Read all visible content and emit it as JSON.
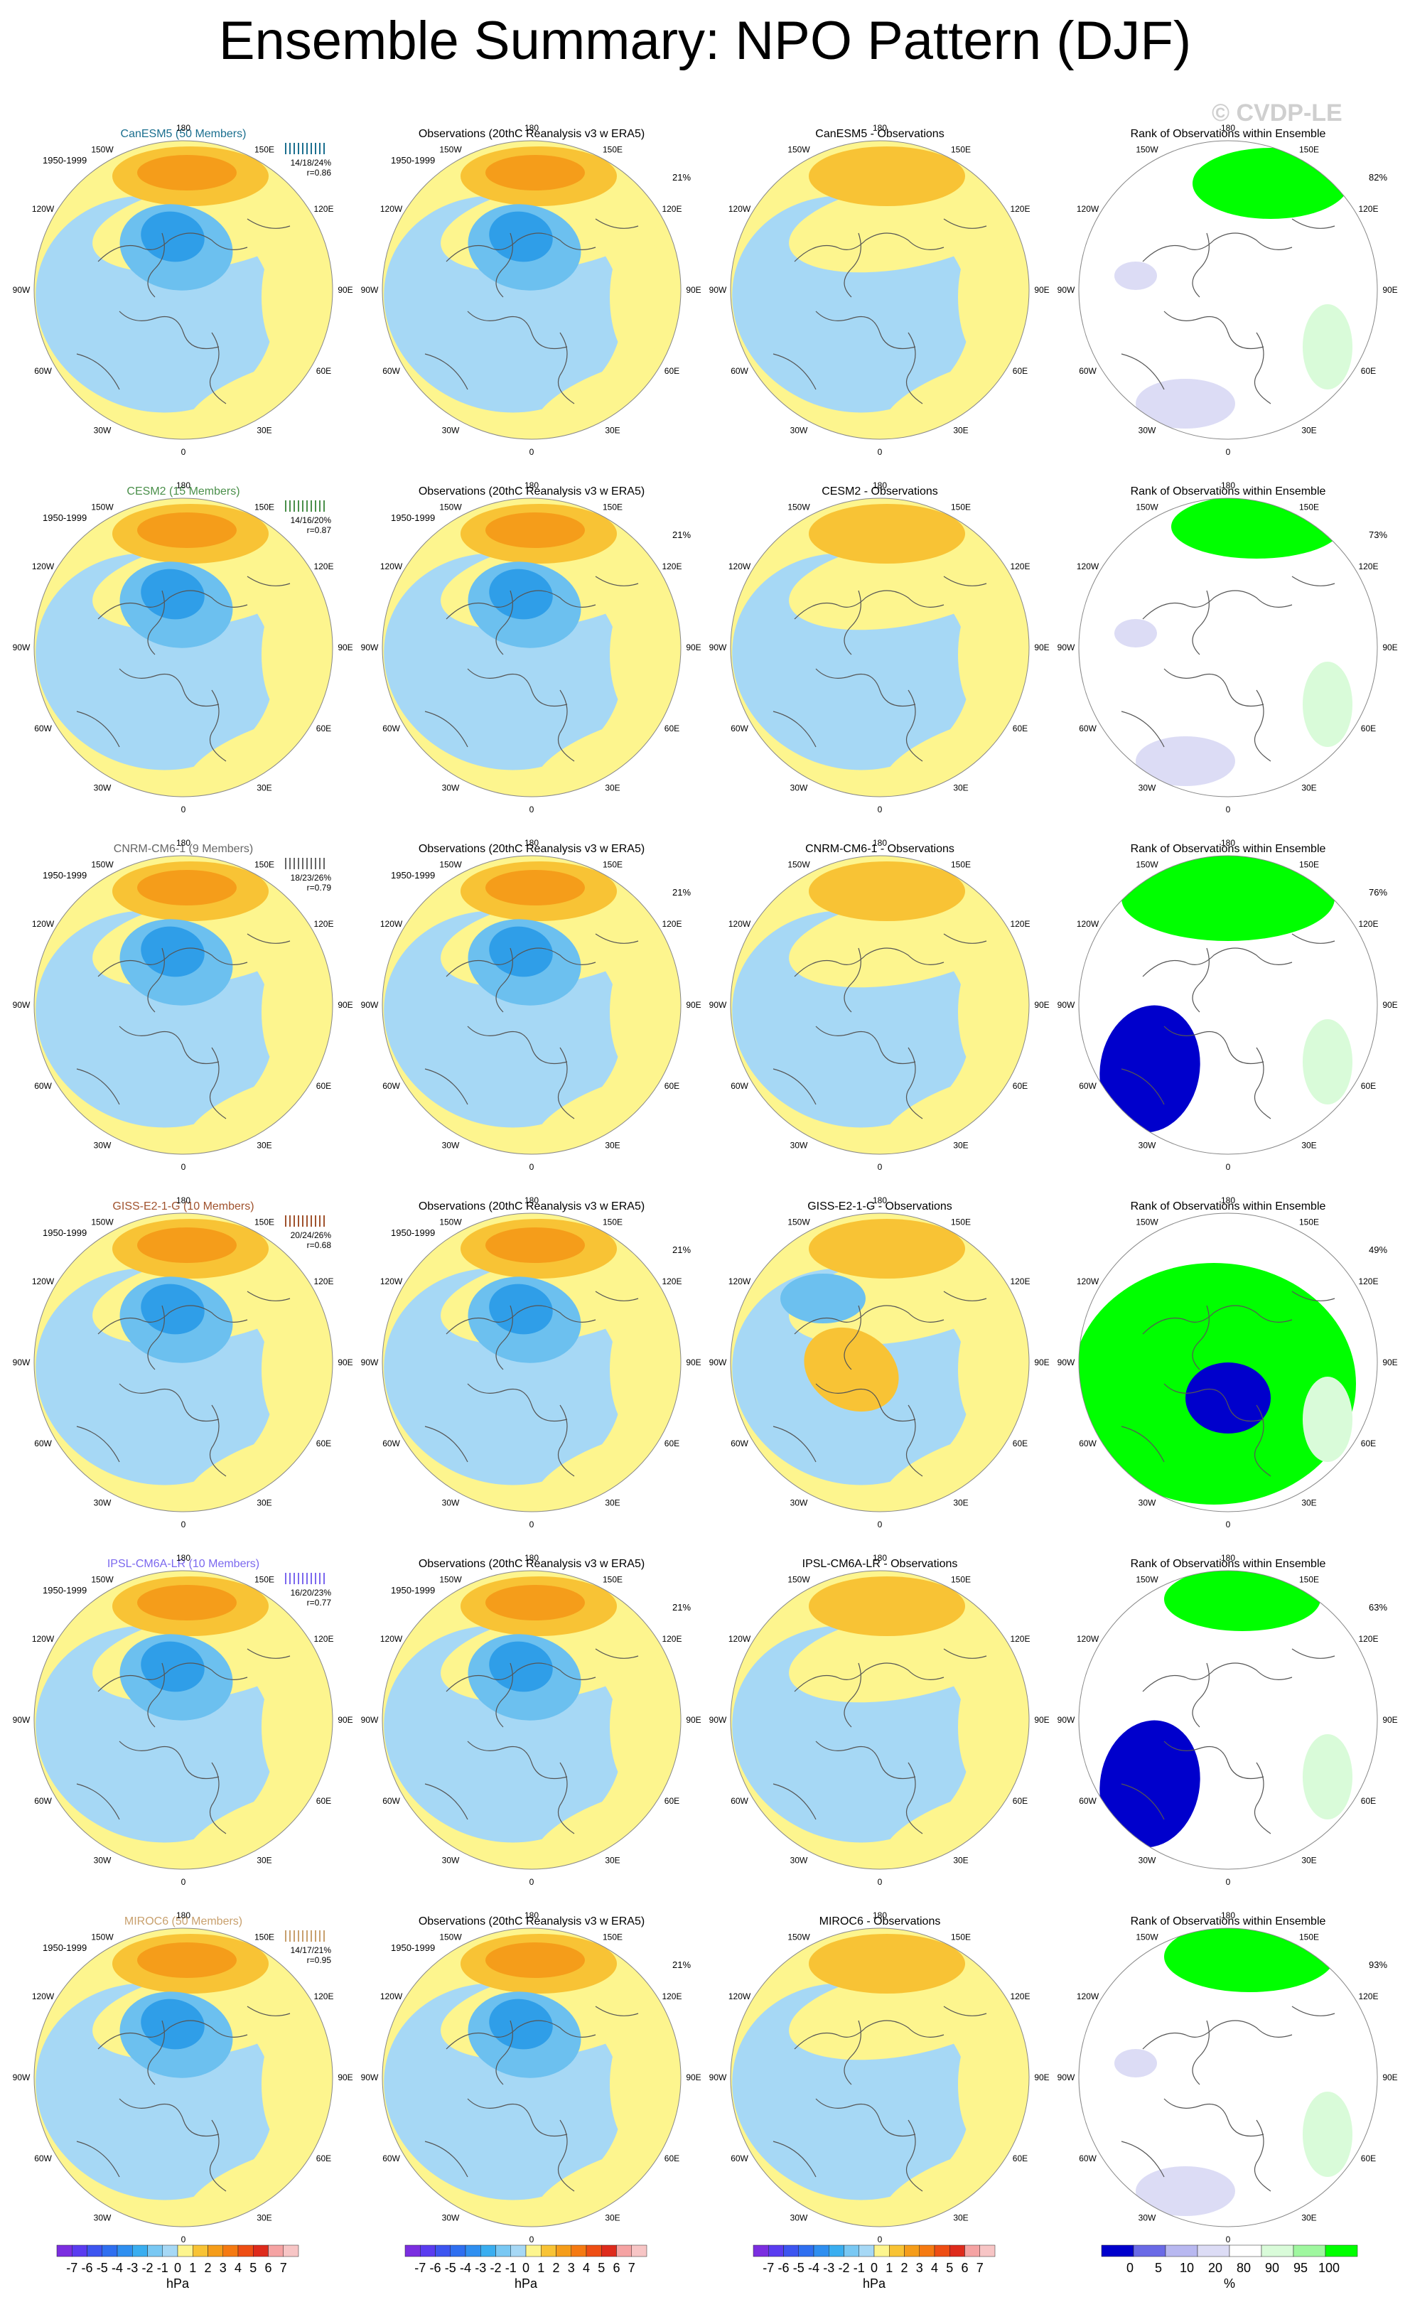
{
  "title": "Ensemble Summary: NPO Pattern (DJF)",
  "watermark": "© CVDP-LE",
  "period": "1950-1999",
  "obs_title": "Observations (20thC Reanalysis v3 w ERA5)",
  "obs_pct": "21%",
  "rank_title": "Rank of Observations within Ensemble",
  "lon_labels": [
    "180",
    "150E",
    "120E",
    "90E",
    "60E",
    "30E",
    "0",
    "30W",
    "60W",
    "90W",
    "120W",
    "150W"
  ],
  "colors": {
    "ens_colors": [
      "#1b6f8f",
      "#4a8f4a",
      "#666666",
      "#a0522d",
      "#7b68ee",
      "#c8a06e"
    ],
    "fill_yellow": "#fdf58e",
    "fill_orange": "#f8c335",
    "fill_dorange": "#f59d1a",
    "fill_lblue": "#a6d8f5",
    "fill_blue": "#6cc0ef",
    "fill_dblue": "#2f9ee8",
    "fill_vdblue": "#1f63d8",
    "rank_green": "#00ff00",
    "rank_blue": "#0000cc",
    "rank_lblue": "#dcdcf5"
  },
  "rows": [
    {
      "model": "CanESM5 (50 Members)",
      "diff_title": "CanESM5 - Observations",
      "stats": [
        "14/18/24%",
        "r=0.86"
      ],
      "rank_pct": "82%",
      "color": "#1b6f8f"
    },
    {
      "model": "CESM2 (15 Members)",
      "diff_title": "CESM2 - Observations",
      "stats": [
        "14/16/20%",
        "r=0.87"
      ],
      "rank_pct": "73%",
      "color": "#4a8f4a"
    },
    {
      "model": "CNRM-CM6-1 (9 Members)",
      "diff_title": "CNRM-CM6-1 - Observations",
      "stats": [
        "18/23/26%",
        "r=0.79"
      ],
      "rank_pct": "76%",
      "color": "#666666"
    },
    {
      "model": "GISS-E2-1-G (10 Members)",
      "diff_title": "GISS-E2-1-G - Observations",
      "stats": [
        "20/24/26%",
        "r=0.68"
      ],
      "rank_pct": "49%",
      "color": "#a0522d"
    },
    {
      "model": "IPSL-CM6A-LR (10 Members)",
      "diff_title": "IPSL-CM6A-LR - Observations",
      "stats": [
        "16/20/23%",
        "r=0.77"
      ],
      "rank_pct": "63%",
      "color": "#7b68ee"
    },
    {
      "model": "MIROC6 (50 Members)",
      "diff_title": "MIROC6 - Observations",
      "stats": [
        "14/17/21%",
        "r=0.95"
      ],
      "rank_pct": "93%",
      "color": "#c8a06e"
    }
  ],
  "chart_data": {
    "type": "heatmap",
    "description_levels": "sea level pressure anomaly maps, polar stereographic, contour levels in hPa",
    "colorbar_hpa": {
      "labels": [
        "-7",
        "-6",
        "-5",
        "-4",
        "-3",
        "-2",
        "-1",
        "0",
        "1",
        "2",
        "3",
        "4",
        "5",
        "6",
        "7"
      ],
      "unit": "hPa",
      "colors": [
        "#7b2ee0",
        "#5a3cf0",
        "#3d55f0",
        "#2f6ff0",
        "#2f8ff0",
        "#3aaef0",
        "#79c8f3",
        "#a6d8f5",
        "#fdf58e",
        "#f8c335",
        "#f59d1a",
        "#f57a12",
        "#ee4e14",
        "#de2b1c",
        "#f5a3a3",
        "#f7c5c5"
      ]
    },
    "colorbar_rank": {
      "labels": [
        "0",
        "5",
        "10",
        "20",
        "80",
        "90",
        "95",
        "100"
      ],
      "unit": "%",
      "colors": [
        "#0000cc",
        "#6a6ae6",
        "#b8b8f0",
        "#dcdcf5",
        "#ffffff",
        "#d9fbd9",
        "#9ff79f",
        "#00ff00"
      ]
    }
  }
}
